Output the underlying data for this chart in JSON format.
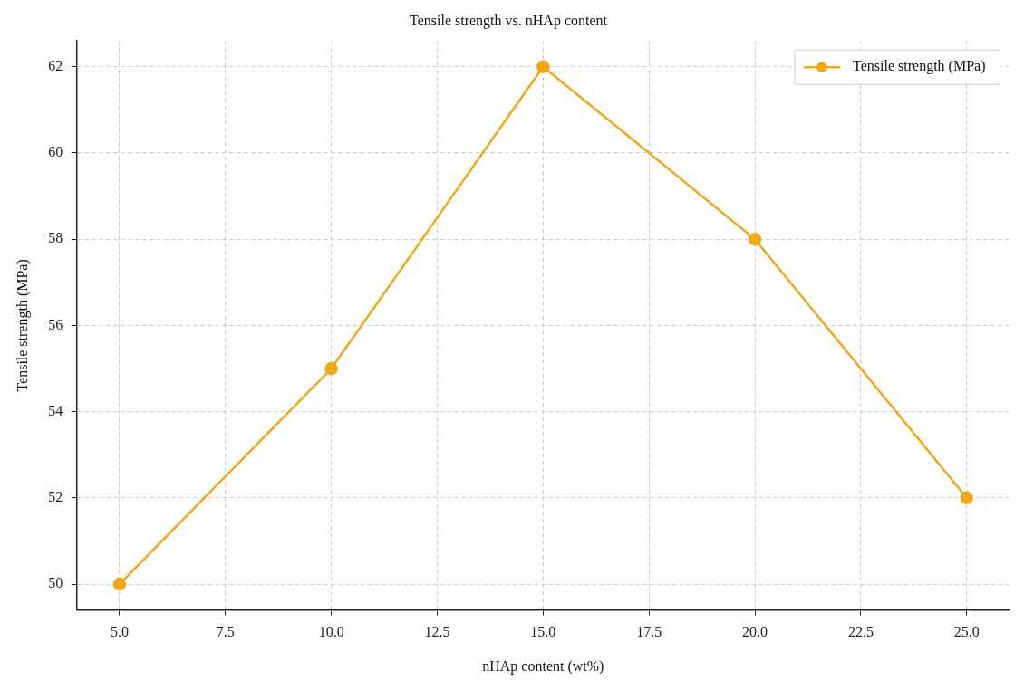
{
  "chart_data": {
    "type": "line",
    "title": "Tensile strength vs. nHAp content",
    "xlabel": "nHAp content (wt%)",
    "ylabel": "Tensile strength (MPa)",
    "x": [
      5,
      10,
      15,
      20,
      25
    ],
    "series": [
      {
        "name": "Tensile strength (MPa)",
        "color": "#f0a818",
        "values": [
          50,
          55,
          62,
          58,
          52
        ]
      }
    ],
    "xlim": [
      4,
      26
    ],
    "xticks": [
      {
        "value": 5,
        "label": "5.0"
      },
      {
        "value": 7.5,
        "label": "7.5"
      },
      {
        "value": 10,
        "label": "10.0"
      },
      {
        "value": 12.5,
        "label": "12.5"
      },
      {
        "value": 15,
        "label": "15.0"
      },
      {
        "value": 17.5,
        "label": "17.5"
      },
      {
        "value": 20,
        "label": "20.0"
      },
      {
        "value": 22.5,
        "label": "22.5"
      },
      {
        "value": 25,
        "label": "25.0"
      }
    ],
    "ylim": [
      49.4,
      62.6
    ],
    "yticks": [
      50,
      52,
      54,
      56,
      58,
      60,
      62
    ],
    "grid": true,
    "legend": "top right",
    "marker": "circle",
    "line_style": "solid"
  }
}
